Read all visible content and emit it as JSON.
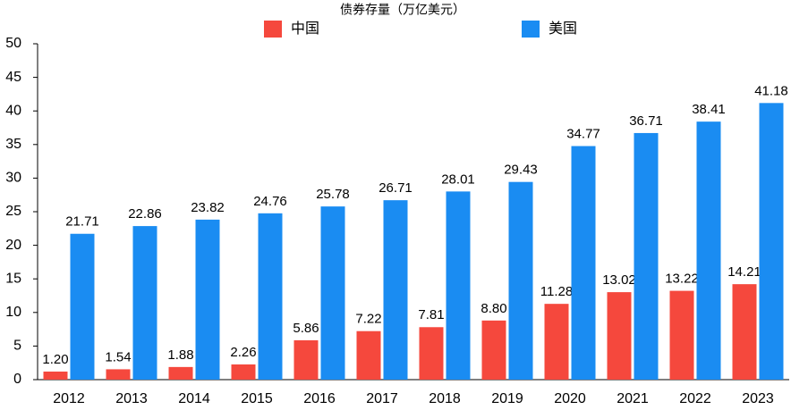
{
  "chart_data": {
    "type": "bar",
    "title": "债券存量（万亿美元）",
    "categories": [
      "2012",
      "2013",
      "2014",
      "2015",
      "2016",
      "2017",
      "2018",
      "2019",
      "2020",
      "2021",
      "2022",
      "2023"
    ],
    "series": [
      {
        "name": "中国",
        "color": "#f5483d",
        "values": [
          1.2,
          1.54,
          1.88,
          2.26,
          5.86,
          7.22,
          7.81,
          8.8,
          11.28,
          13.02,
          13.22,
          14.21
        ],
        "value_labels": [
          "1.20",
          "1.54",
          "1.88",
          "2.26",
          "5.86",
          "7.22",
          "7.81",
          "8.80",
          "11.28",
          "13.02",
          "13.22",
          "14.21"
        ]
      },
      {
        "name": "美国",
        "color": "#1a8cf2",
        "values": [
          21.71,
          22.86,
          23.82,
          24.76,
          25.78,
          26.71,
          28.01,
          29.43,
          34.77,
          36.71,
          38.41,
          41.18
        ],
        "value_labels": [
          "21.71",
          "22.86",
          "23.82",
          "24.76",
          "25.78",
          "26.71",
          "28.01",
          "29.43",
          "34.77",
          "36.71",
          "38.41",
          "41.18"
        ]
      }
    ],
    "ylim": [
      0,
      50
    ],
    "yticks": [
      0,
      5,
      10,
      15,
      20,
      25,
      30,
      35,
      40,
      45,
      50
    ],
    "grid": false,
    "legend": "top"
  }
}
